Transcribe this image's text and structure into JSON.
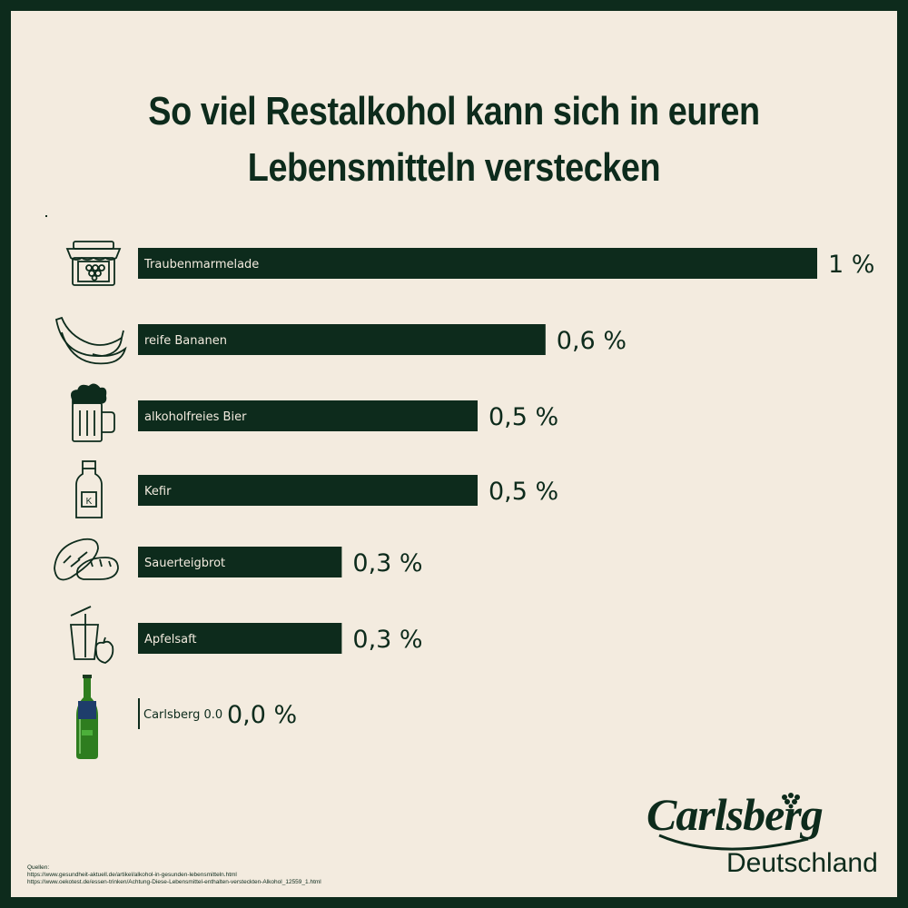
{
  "title": "So viel Restalkohol kann sich in euren Lebensmitteln verstecken",
  "chart_data": {
    "type": "bar",
    "orientation": "horizontal",
    "categories": [
      "Traubenmarmelade",
      "reife Bananen",
      "alkoholfreies Bier",
      "Kefir",
      "Sauerteigbrot",
      "Apfelsaft",
      "Carlsberg 0.0"
    ],
    "values": [
      1.0,
      0.6,
      0.5,
      0.5,
      0.3,
      0.3,
      0.0
    ],
    "value_labels": [
      "1 %",
      "0,6 %",
      "0,5 %",
      "0,5 %",
      "0,3 %",
      "0,3 %",
      "0,0 %"
    ],
    "unit": "%",
    "xlim": [
      0,
      1
    ],
    "grid": false,
    "legend": "none",
    "icons": [
      "jam-jar-icon",
      "banana-icon",
      "beer-mug-icon",
      "kefir-bottle-icon",
      "bread-icon",
      "juice-apple-icon",
      "carlsberg-bottle-icon"
    ]
  },
  "sources": {
    "heading": "Quellen:",
    "lines": [
      "https://www.gesundheit-aktuell.de/artikel/alkohol-in-gesunden-lebensmitteln.html",
      "https://www.oekotest.de/essen-trinken/Achtung-Diese-Lebensmittel-enthalten-versteckten-Alkohol_12559_1.html"
    ]
  },
  "logo": {
    "brand": "Carlsberg",
    "region": "Deutschland"
  },
  "colors": {
    "background": "#f3ebdf",
    "frame": "#0d2b1c",
    "bar": "#0d2b1c",
    "bottle": "#2e7d1f"
  }
}
